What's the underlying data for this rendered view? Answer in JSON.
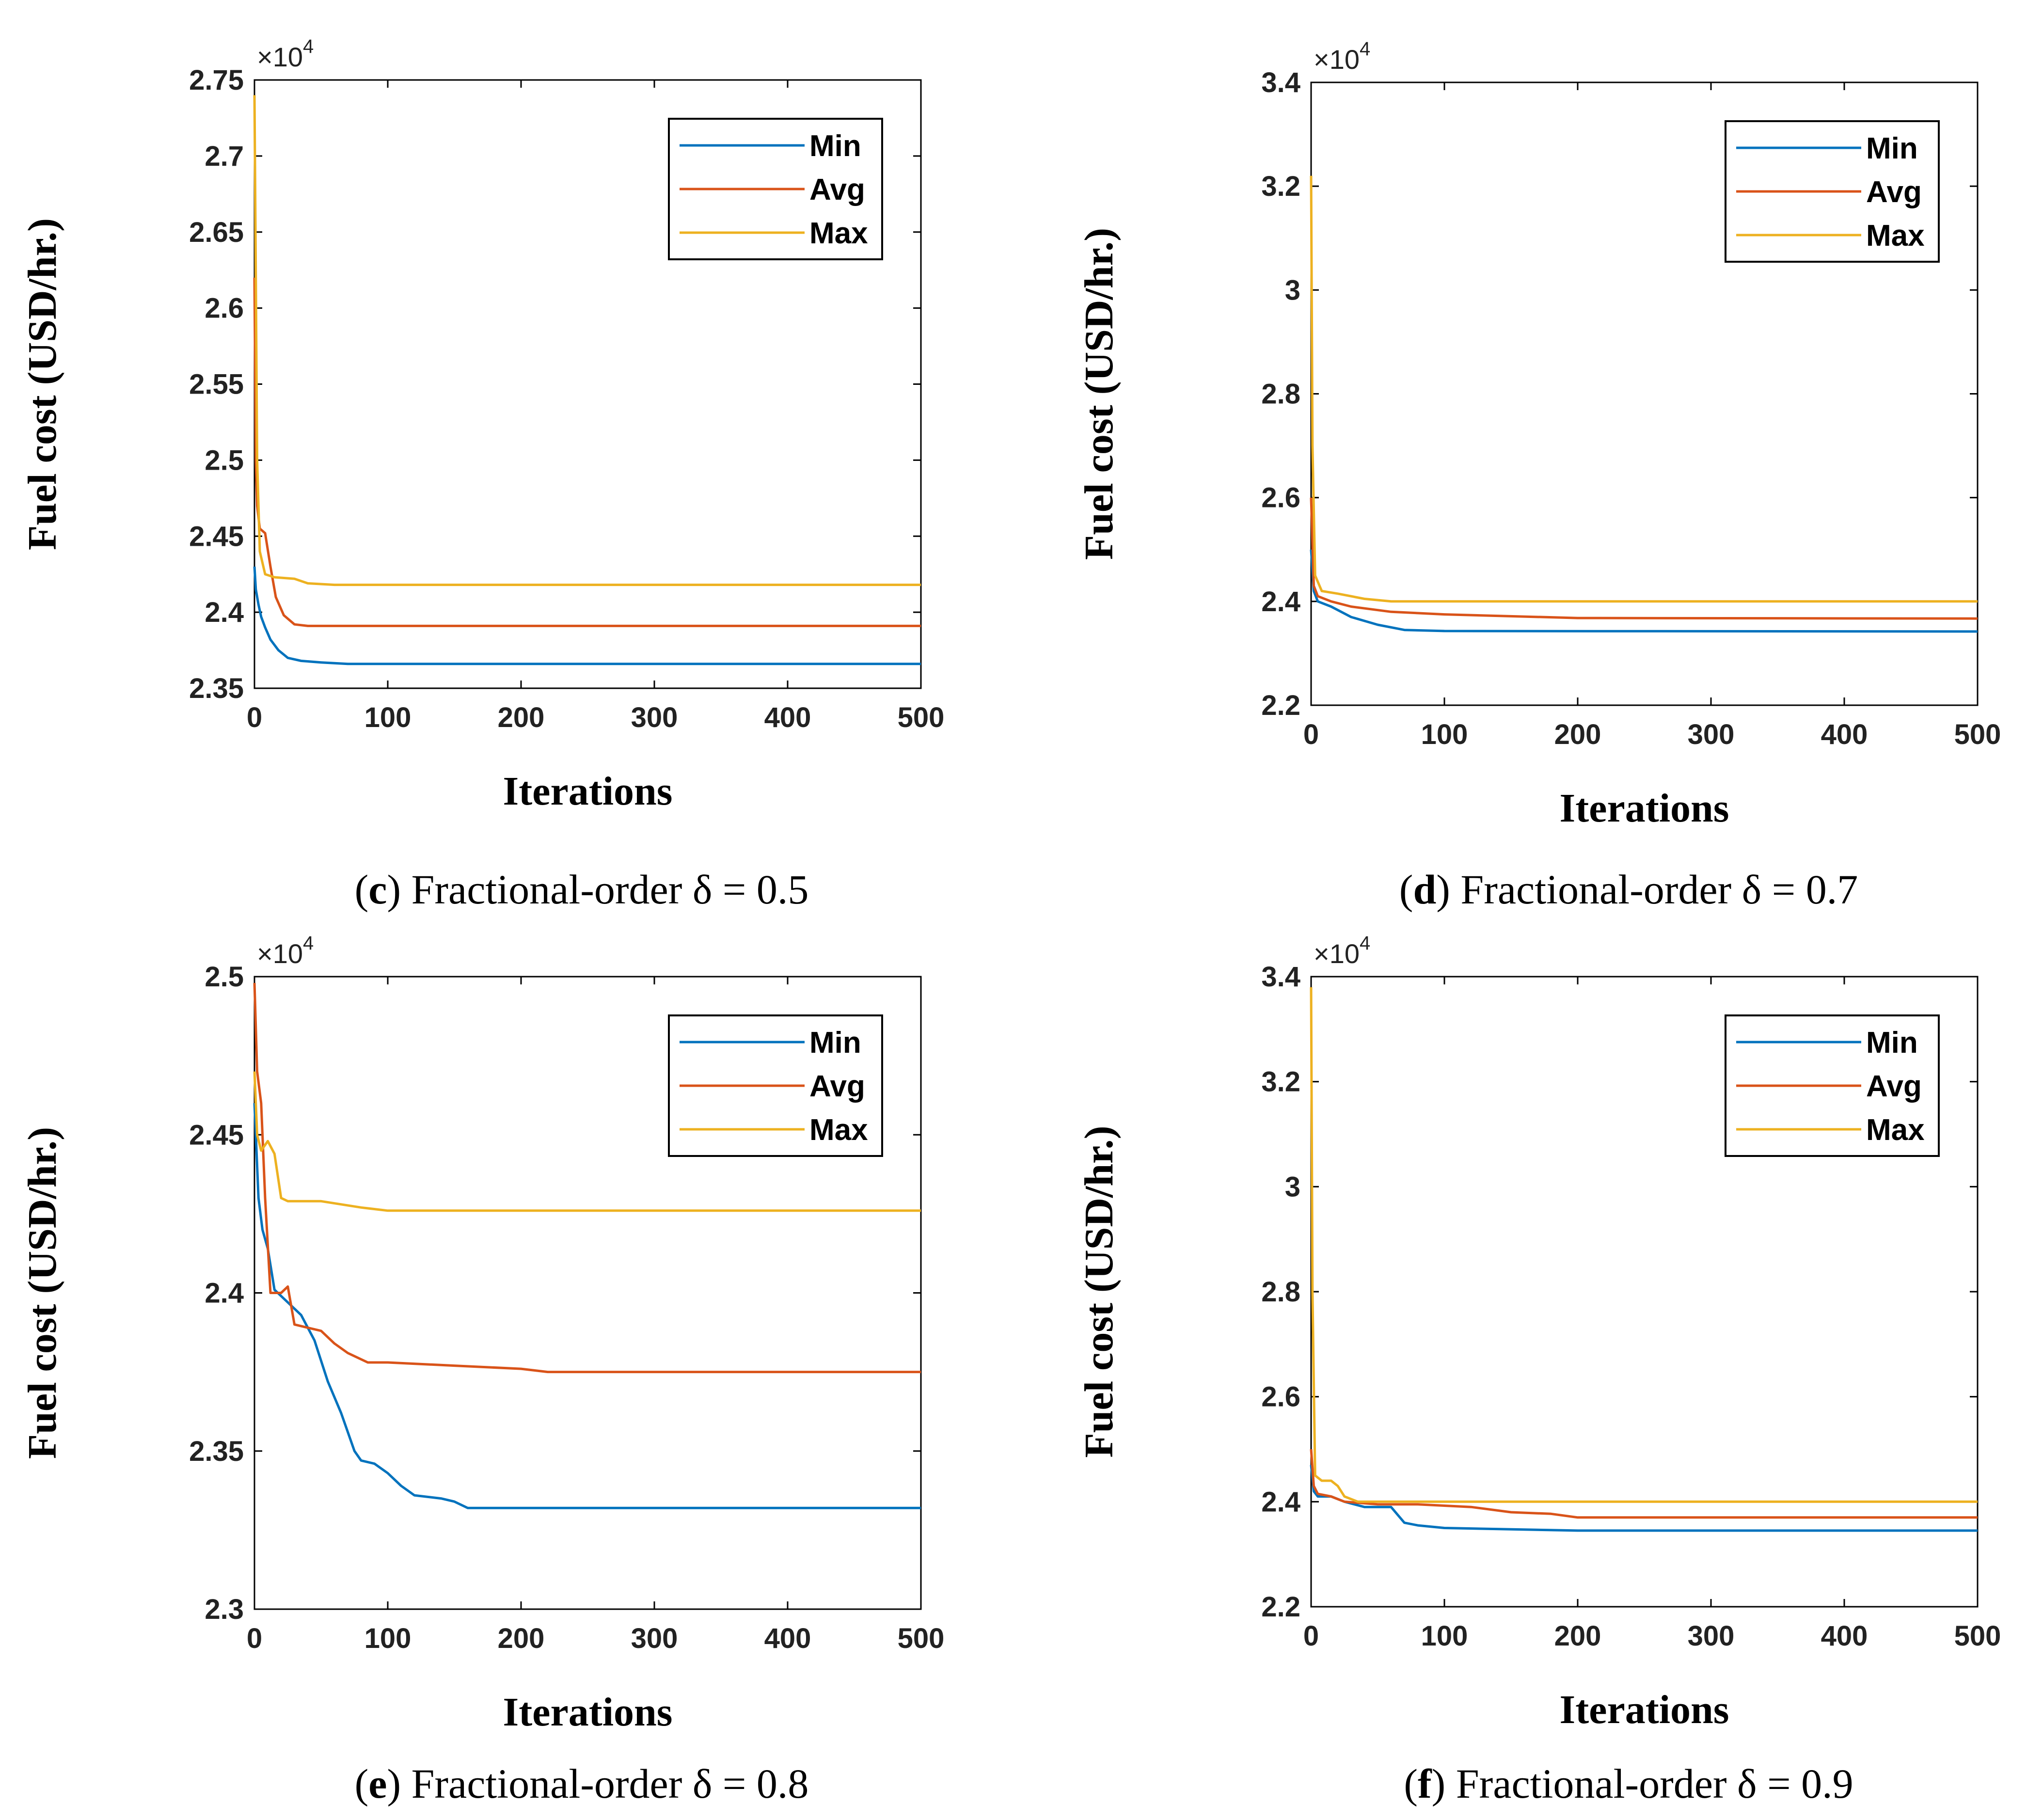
{
  "figure": {
    "axis_labels": {
      "x": "Iterations",
      "y": "Fuel cost (USD/hr.)"
    },
    "multiplier_text": "×10",
    "multiplier_exp": "4"
  },
  "series_styles": [
    {
      "name": "Min",
      "color": "#0072BD"
    },
    {
      "name": "Avg",
      "color": "#D95319"
    },
    {
      "name": "Max",
      "color": "#EDB120"
    }
  ],
  "captions": [
    {
      "letter": "c",
      "text": " Fractional-order δ = 0.5"
    },
    {
      "letter": "d",
      "text": " Fractional-order δ = 0.7"
    },
    {
      "letter": "e",
      "text": " Fractional-order δ = 0.8"
    },
    {
      "letter": "f",
      "text": " Fractional-order δ = 0.9"
    }
  ],
  "chart_data": [
    {
      "type": "line",
      "panel": "c",
      "title": "(c) Fractional-order δ = 0.5",
      "xlabel": "Iterations",
      "ylabel": "Fuel cost (USD/hr.)",
      "xlim": [
        0,
        500
      ],
      "ylim": [
        2.35,
        2.75
      ],
      "xticks": [
        0,
        100,
        200,
        300,
        400,
        500
      ],
      "ytick_labels": [
        "2.35",
        "2.4",
        "2.45",
        "2.5",
        "2.55",
        "2.6",
        "2.65",
        "2.7",
        "2.75"
      ],
      "y_multiplier": "×10^4",
      "legend": "top-right",
      "series": [
        {
          "name": "Min",
          "x": [
            0,
            1,
            3,
            5,
            8,
            12,
            18,
            25,
            35,
            50,
            70,
            100,
            500
          ],
          "values": [
            2.43,
            2.415,
            2.405,
            2.397,
            2.39,
            2.382,
            2.375,
            2.37,
            2.368,
            2.367,
            2.366,
            2.366,
            2.366
          ]
        },
        {
          "name": "Avg",
          "x": [
            0,
            1,
            2,
            4,
            8,
            12,
            16,
            22,
            30,
            40,
            500
          ],
          "values": [
            2.62,
            2.5,
            2.47,
            2.455,
            2.452,
            2.43,
            2.41,
            2.398,
            2.392,
            2.391,
            2.391
          ]
        },
        {
          "name": "Max",
          "x": [
            0,
            1,
            2,
            4,
            8,
            15,
            30,
            40,
            60,
            500
          ],
          "values": [
            2.74,
            2.62,
            2.5,
            2.44,
            2.425,
            2.423,
            2.422,
            2.419,
            2.418,
            2.418
          ]
        }
      ]
    },
    {
      "type": "line",
      "panel": "d",
      "title": "(d) Fractional-order δ = 0.7",
      "xlabel": "Iterations",
      "ylabel": "Fuel cost (USD/hr.)",
      "xlim": [
        0,
        500
      ],
      "ylim": [
        2.2,
        3.4
      ],
      "xticks": [
        0,
        100,
        200,
        300,
        400,
        500
      ],
      "ytick_labels": [
        "2.2",
        "2.4",
        "2.6",
        "2.8",
        "3",
        "3.2",
        "3.4"
      ],
      "y_multiplier": "×10^4",
      "legend": "top-right",
      "series": [
        {
          "name": "Min",
          "x": [
            0,
            2,
            5,
            15,
            30,
            50,
            70,
            100,
            500
          ],
          "values": [
            2.5,
            2.42,
            2.4,
            2.39,
            2.37,
            2.355,
            2.345,
            2.343,
            2.342
          ]
        },
        {
          "name": "Avg",
          "x": [
            0,
            2,
            5,
            15,
            30,
            60,
            100,
            200,
            500
          ],
          "values": [
            2.6,
            2.43,
            2.41,
            2.4,
            2.39,
            2.38,
            2.375,
            2.368,
            2.367
          ]
        },
        {
          "name": "Max",
          "x": [
            0,
            1,
            3,
            8,
            20,
            40,
            60,
            100,
            500
          ],
          "values": [
            3.22,
            2.7,
            2.45,
            2.42,
            2.415,
            2.405,
            2.4,
            2.4,
            2.4
          ]
        }
      ]
    },
    {
      "type": "line",
      "panel": "e",
      "title": "(e) Fractional-order δ = 0.8",
      "xlabel": "Iterations",
      "ylabel": "Fuel cost (USD/hr.)",
      "xlim": [
        0,
        500
      ],
      "ylim": [
        2.3,
        2.5
      ],
      "xticks": [
        0,
        100,
        200,
        300,
        400,
        500
      ],
      "ytick_labels": [
        "2.3",
        "2.35",
        "2.4",
        "2.45",
        "2.5"
      ],
      "y_multiplier": "×10^4",
      "legend": "top-right",
      "series": [
        {
          "name": "Min",
          "x": [
            0,
            3,
            6,
            10,
            15,
            25,
            35,
            45,
            55,
            65,
            75,
            80,
            90,
            100,
            110,
            120,
            140,
            150,
            160,
            170,
            200,
            500
          ],
          "values": [
            2.46,
            2.43,
            2.42,
            2.414,
            2.401,
            2.397,
            2.393,
            2.385,
            2.372,
            2.362,
            2.35,
            2.347,
            2.346,
            2.343,
            2.339,
            2.336,
            2.335,
            2.334,
            2.332,
            2.332,
            2.332,
            2.332
          ]
        },
        {
          "name": "Avg",
          "x": [
            0,
            2,
            5,
            8,
            12,
            20,
            25,
            30,
            40,
            50,
            60,
            70,
            85,
            100,
            150,
            200,
            220,
            500
          ],
          "values": [
            2.498,
            2.47,
            2.46,
            2.43,
            2.4,
            2.4,
            2.402,
            2.39,
            2.389,
            2.388,
            2.384,
            2.381,
            2.378,
            2.378,
            2.377,
            2.376,
            2.375,
            2.375
          ]
        },
        {
          "name": "Max",
          "x": [
            0,
            2,
            5,
            10,
            15,
            20,
            25,
            50,
            80,
            100,
            150,
            500
          ],
          "values": [
            2.47,
            2.45,
            2.445,
            2.448,
            2.444,
            2.43,
            2.429,
            2.429,
            2.427,
            2.426,
            2.426,
            2.426
          ]
        }
      ]
    },
    {
      "type": "line",
      "panel": "f",
      "title": "(f) Fractional-order δ = 0.9",
      "xlabel": "Iterations",
      "ylabel": "Fuel cost (USD/hr.)",
      "xlim": [
        0,
        500
      ],
      "ylim": [
        2.2,
        3.4
      ],
      "xticks": [
        0,
        100,
        200,
        300,
        400,
        500
      ],
      "ytick_labels": [
        "2.2",
        "2.4",
        "2.6",
        "2.8",
        "3",
        "3.2",
        "3.4"
      ],
      "y_multiplier": "×10^4",
      "legend": "top-right",
      "series": [
        {
          "name": "Min",
          "x": [
            0,
            2,
            5,
            15,
            25,
            40,
            60,
            70,
            80,
            100,
            200,
            500
          ],
          "values": [
            2.47,
            2.42,
            2.41,
            2.41,
            2.4,
            2.39,
            2.39,
            2.36,
            2.355,
            2.35,
            2.345,
            2.345
          ]
        },
        {
          "name": "Avg",
          "x": [
            0,
            2,
            5,
            15,
            25,
            50,
            80,
            120,
            150,
            180,
            200,
            500
          ],
          "values": [
            2.5,
            2.43,
            2.415,
            2.41,
            2.4,
            2.395,
            2.395,
            2.39,
            2.38,
            2.377,
            2.37,
            2.37
          ]
        },
        {
          "name": "Max",
          "x": [
            0,
            1,
            3,
            8,
            15,
            20,
            25,
            35,
            60,
            100,
            500
          ],
          "values": [
            3.38,
            2.8,
            2.45,
            2.44,
            2.44,
            2.43,
            2.41,
            2.4,
            2.4,
            2.4,
            2.4
          ]
        }
      ]
    }
  ]
}
